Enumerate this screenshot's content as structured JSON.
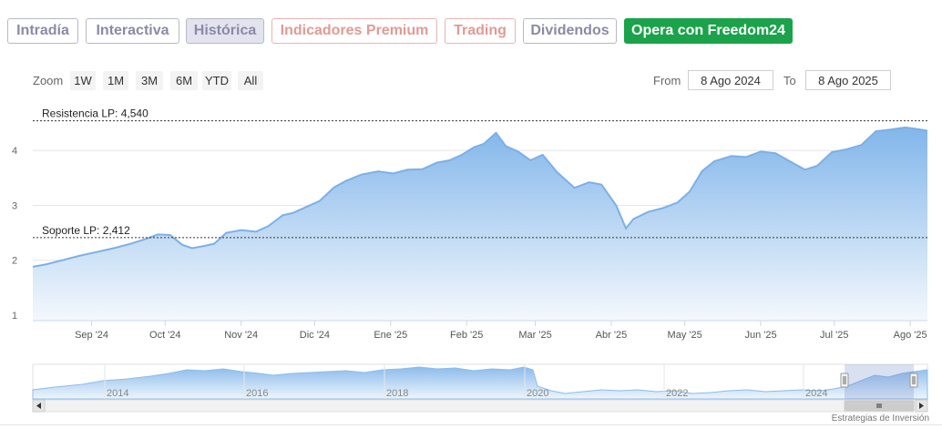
{
  "tabs": [
    {
      "label": "Intradía",
      "state": "normal"
    },
    {
      "label": "Interactiva",
      "state": "normal"
    },
    {
      "label": "Histórica",
      "state": "active"
    },
    {
      "label": "Indicadores Premium",
      "state": "premium"
    },
    {
      "label": "Trading",
      "state": "premium"
    },
    {
      "label": "Dividendos",
      "state": "normal"
    },
    {
      "label": "Opera con Freedom24",
      "state": "cta"
    }
  ],
  "toolbar": {
    "zoom_label": "Zoom",
    "zoom_buttons": [
      "1W",
      "1M",
      "3M",
      "6M",
      "YTD",
      "All"
    ],
    "from_label": "From",
    "from_value": "8 Ago 2024",
    "to_label": "To",
    "to_value": "8 Ago 2025"
  },
  "colors": {
    "line": "#7cb0e6",
    "area_top": "#82b6ea",
    "area_bottom": "#f4f8fd",
    "level_line": "#333333",
    "cta": "#1aa34a"
  },
  "chart_data": {
    "type": "area",
    "x_ticks": [
      "Sep '24",
      "Oct '24",
      "Nov '24",
      "Dic '24",
      "Ene '25",
      "Feb '25",
      "Mar '25",
      "Abr '25",
      "May '25",
      "Jun '25",
      "Jul '25",
      "Ago '25"
    ],
    "y_ticks": [
      1,
      2,
      3,
      4
    ],
    "ylim": [
      0.9,
      4.75
    ],
    "xlim": [
      "2024-08-08",
      "2025-08-08"
    ],
    "grid": true,
    "levels": [
      {
        "label": "Resistencia LP: 4,540",
        "value": 4.54
      },
      {
        "label": "Soporte LP: 2,412",
        "value": 2.412
      }
    ],
    "series": [
      {
        "x": [
          "2024-08-08",
          "2024-08-13",
          "2024-08-20",
          "2024-08-27",
          "2024-09-03",
          "2024-09-10",
          "2024-09-17",
          "2024-09-24",
          "2024-09-28",
          "2024-10-03",
          "2024-10-08",
          "2024-10-12",
          "2024-10-17",
          "2024-10-21",
          "2024-10-26",
          "2024-11-01",
          "2024-11-07",
          "2024-11-12",
          "2024-11-18",
          "2024-11-22",
          "2024-11-27",
          "2024-12-03",
          "2024-12-09",
          "2024-12-14",
          "2024-12-20",
          "2024-12-27",
          "2025-01-02",
          "2025-01-08",
          "2025-01-14",
          "2025-01-20",
          "2025-01-25",
          "2025-01-30",
          "2025-02-04",
          "2025-02-08",
          "2025-02-13",
          "2025-02-17",
          "2025-02-22",
          "2025-02-27",
          "2025-03-04",
          "2025-03-10",
          "2025-03-17",
          "2025-03-23",
          "2025-03-28",
          "2025-04-03",
          "2025-04-07",
          "2025-04-10",
          "2025-04-16",
          "2025-04-22",
          "2025-04-28",
          "2025-05-03",
          "2025-05-08",
          "2025-05-13",
          "2025-05-20",
          "2025-05-26",
          "2025-06-01",
          "2025-06-07",
          "2025-06-13",
          "2025-06-19",
          "2025-06-24",
          "2025-06-30",
          "2025-07-06",
          "2025-07-12",
          "2025-07-18",
          "2025-07-24",
          "2025-07-30",
          "2025-08-04",
          "2025-08-08"
        ],
        "y": [
          1.88,
          1.92,
          2.0,
          2.08,
          2.15,
          2.22,
          2.3,
          2.4,
          2.47,
          2.46,
          2.28,
          2.22,
          2.26,
          2.3,
          2.5,
          2.55,
          2.52,
          2.62,
          2.82,
          2.86,
          2.96,
          3.08,
          3.33,
          3.45,
          3.56,
          3.62,
          3.58,
          3.65,
          3.66,
          3.78,
          3.82,
          3.92,
          4.06,
          4.12,
          4.32,
          4.08,
          3.98,
          3.82,
          3.92,
          3.6,
          3.32,
          3.42,
          3.38,
          3.0,
          2.58,
          2.75,
          2.88,
          2.95,
          3.05,
          3.25,
          3.62,
          3.8,
          3.9,
          3.88,
          3.98,
          3.95,
          3.8,
          3.65,
          3.72,
          3.97,
          4.02,
          4.1,
          4.35,
          4.38,
          4.42,
          4.39,
          4.36
        ]
      }
    ],
    "navigator": {
      "x_ticks": [
        "2014",
        "2016",
        "2018",
        "2020",
        "2022",
        "2024"
      ]
    }
  },
  "footer": {
    "credit": "Estrategias de Inversión"
  }
}
